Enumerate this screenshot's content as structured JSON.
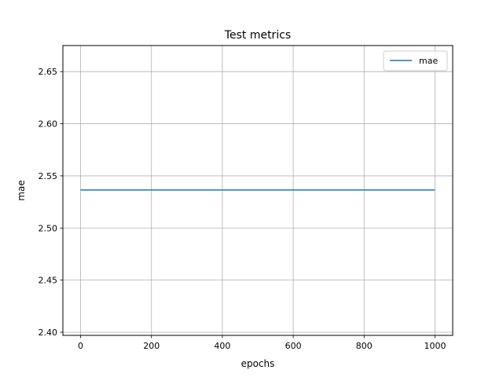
{
  "chart_data": {
    "type": "line",
    "title": "Test metrics",
    "xlabel": "epochs",
    "ylabel": "mae",
    "xlim": [
      -50,
      1050
    ],
    "ylim": [
      2.397,
      2.675
    ],
    "xticks": [
      0,
      200,
      400,
      600,
      800,
      1000
    ],
    "xtick_labels": [
      "0",
      "200",
      "400",
      "600",
      "800",
      "1000"
    ],
    "yticks": [
      2.4,
      2.45,
      2.5,
      2.55,
      2.6,
      2.65
    ],
    "ytick_labels": [
      "2.40",
      "2.45",
      "2.50",
      "2.55",
      "2.60",
      "2.65"
    ],
    "grid": true,
    "legend_position": "top-right",
    "series": [
      {
        "name": "mae",
        "color": "#1f77b4",
        "x": [
          0,
          1000
        ],
        "y": [
          2.5365,
          2.5365
        ]
      }
    ]
  }
}
